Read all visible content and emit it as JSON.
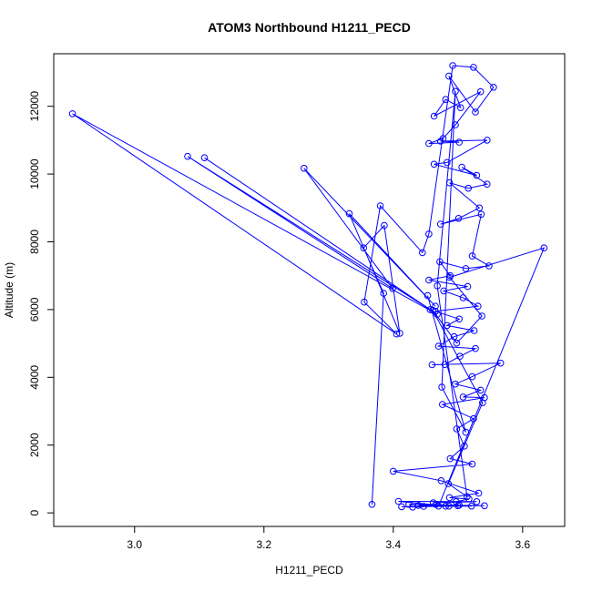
{
  "chart_data": {
    "type": "line",
    "title": "ATOM3 Northbound H1211_PECD",
    "xlabel": "H1211_PECD",
    "ylabel": "Altitude (m)",
    "xlim": [
      2.875,
      3.665
    ],
    "ylim": [
      -400,
      13550
    ],
    "x_ticks": [
      3.0,
      3.2,
      3.4,
      3.6
    ],
    "y_ticks": [
      0,
      2000,
      4000,
      6000,
      8000,
      10000,
      12000
    ],
    "x_tick_labels": [
      "3.0",
      "3.2",
      "3.4",
      "3.6"
    ],
    "y_tick_labels": [
      "0",
      "2000",
      "4000",
      "6000",
      "8000",
      "10000",
      "12000"
    ],
    "grid": false,
    "legend": "none",
    "color": "#0000ff",
    "series": [
      {
        "points": [
          [
            3.367,
            250
          ],
          [
            3.385,
            6480
          ],
          [
            3.354,
            7820
          ],
          [
            3.386,
            8480
          ],
          [
            3.41,
            5300
          ],
          [
            3.332,
            8830
          ],
          [
            3.465,
            6100
          ],
          [
            3.262,
            10170
          ],
          [
            3.399,
            6620
          ],
          [
            3.082,
            10520
          ],
          [
            3.457,
            6000
          ],
          [
            3.108,
            10480
          ],
          [
            3.468,
            5860
          ],
          [
            2.904,
            11780
          ],
          [
            3.405,
            5280
          ],
          [
            3.355,
            6220
          ],
          [
            3.38,
            9060
          ],
          [
            3.445,
            7680
          ],
          [
            3.455,
            8230
          ],
          [
            3.492,
            13200
          ],
          [
            3.524,
            13150
          ],
          [
            3.555,
            12560
          ],
          [
            3.527,
            11830
          ],
          [
            3.486,
            12890
          ],
          [
            3.504,
            11960
          ],
          [
            3.481,
            12200
          ],
          [
            3.463,
            11710
          ],
          [
            3.535,
            12430
          ],
          [
            3.496,
            11450
          ],
          [
            3.477,
            11050
          ],
          [
            3.455,
            10900
          ],
          [
            3.502,
            10940
          ],
          [
            3.473,
            10970
          ],
          [
            3.545,
            11000
          ],
          [
            3.483,
            10340
          ],
          [
            3.463,
            10290
          ],
          [
            3.529,
            9960
          ],
          [
            3.506,
            10200
          ],
          [
            3.545,
            9700
          ],
          [
            3.516,
            9580
          ],
          [
            3.487,
            9740
          ],
          [
            3.533,
            9000
          ],
          [
            3.501,
            8690
          ],
          [
            3.473,
            8520
          ],
          [
            3.536,
            8810
          ],
          [
            3.522,
            7580
          ],
          [
            3.548,
            7290
          ],
          [
            3.512,
            7210
          ],
          [
            3.472,
            7410
          ],
          [
            3.488,
            7000
          ],
          [
            3.455,
            6870
          ],
          [
            3.515,
            6680
          ],
          [
            3.478,
            6550
          ],
          [
            3.508,
            6350
          ],
          [
            3.531,
            6100
          ],
          [
            3.465,
            5950
          ],
          [
            3.502,
            5720
          ],
          [
            3.483,
            5530
          ],
          [
            3.525,
            5380
          ],
          [
            3.494,
            5200
          ],
          [
            3.47,
            4920
          ],
          [
            3.527,
            4850
          ],
          [
            3.503,
            4620
          ],
          [
            3.48,
            4380
          ],
          [
            3.46,
            4370
          ],
          [
            3.566,
            4420
          ],
          [
            3.522,
            4020
          ],
          [
            3.496,
            3800
          ],
          [
            3.535,
            3620
          ],
          [
            3.508,
            3420
          ],
          [
            3.541,
            3400
          ],
          [
            3.476,
            3200
          ],
          [
            3.524,
            2780
          ],
          [
            3.498,
            2480
          ],
          [
            3.51,
            1970
          ],
          [
            3.488,
            1600
          ],
          [
            3.522,
            1440
          ],
          [
            3.4,
            1230
          ],
          [
            3.474,
            950
          ],
          [
            3.532,
            580
          ],
          [
            3.487,
            450
          ],
          [
            3.517,
            410
          ],
          [
            3.497,
            330
          ],
          [
            3.462,
            300
          ],
          [
            3.529,
            330
          ],
          [
            3.408,
            340
          ],
          [
            3.486,
            200
          ],
          [
            3.466,
            250
          ],
          [
            3.424,
            250
          ],
          [
            3.541,
            210
          ],
          [
            3.439,
            220
          ],
          [
            3.5,
            210
          ],
          [
            3.481,
            200
          ],
          [
            3.43,
            170
          ],
          [
            3.447,
            190
          ],
          [
            3.521,
            200
          ],
          [
            3.413,
            180
          ],
          [
            3.502,
            230
          ],
          [
            3.47,
            200
          ],
          [
            3.633,
            7820
          ],
          [
            3.487,
            6950
          ],
          [
            3.537,
            5810
          ],
          [
            3.498,
            5010
          ],
          [
            3.461,
            5980
          ],
          [
            3.538,
            3250
          ],
          [
            3.485,
            860
          ],
          [
            3.514,
            480
          ],
          [
            3.468,
            6700
          ],
          [
            3.496,
            12440
          ],
          [
            3.475,
            3710
          ],
          [
            3.512,
            2380
          ],
          [
            3.453,
            6410
          ]
        ]
      }
    ]
  }
}
